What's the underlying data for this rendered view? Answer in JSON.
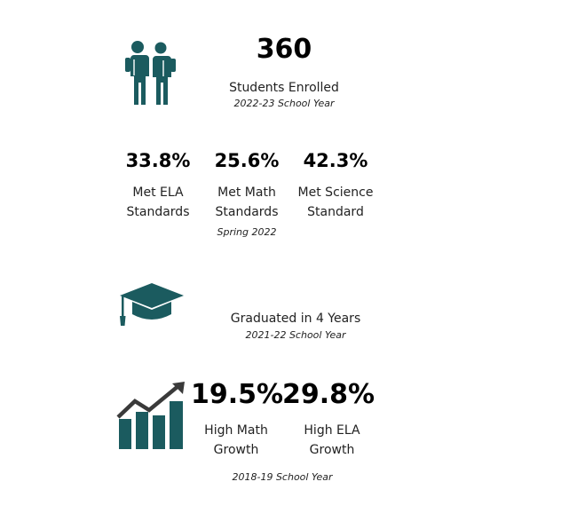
{
  "colors": {
    "icon": "#1b5b5f",
    "text": "#222222",
    "background": "#ffffff"
  },
  "enrollment": {
    "icon": "students-icon",
    "value": "360",
    "label": "Students Enrolled",
    "note": "2022-23 School Year"
  },
  "standards": {
    "items": [
      {
        "value": "33.8%",
        "label_line1": "Met ELA",
        "label_line2": "Standards"
      },
      {
        "value": "25.6%",
        "label_line1": "Met Math",
        "label_line2": "Standards"
      },
      {
        "value": "42.3%",
        "label_line1": "Met Science",
        "label_line2": "Standard"
      }
    ],
    "note": "Spring 2022"
  },
  "graduation": {
    "icon": "graduation-cap-icon",
    "label": "Graduated in 4 Years",
    "note": "2021-22 School Year"
  },
  "growth": {
    "icon": "growth-chart-icon",
    "items": [
      {
        "value": "19.5%",
        "label_line1": "High Math",
        "label_line2": "Growth"
      },
      {
        "value": "29.8%",
        "label_line1": "High ELA",
        "label_line2": "Growth"
      }
    ],
    "note": "2018-19 School Year"
  }
}
